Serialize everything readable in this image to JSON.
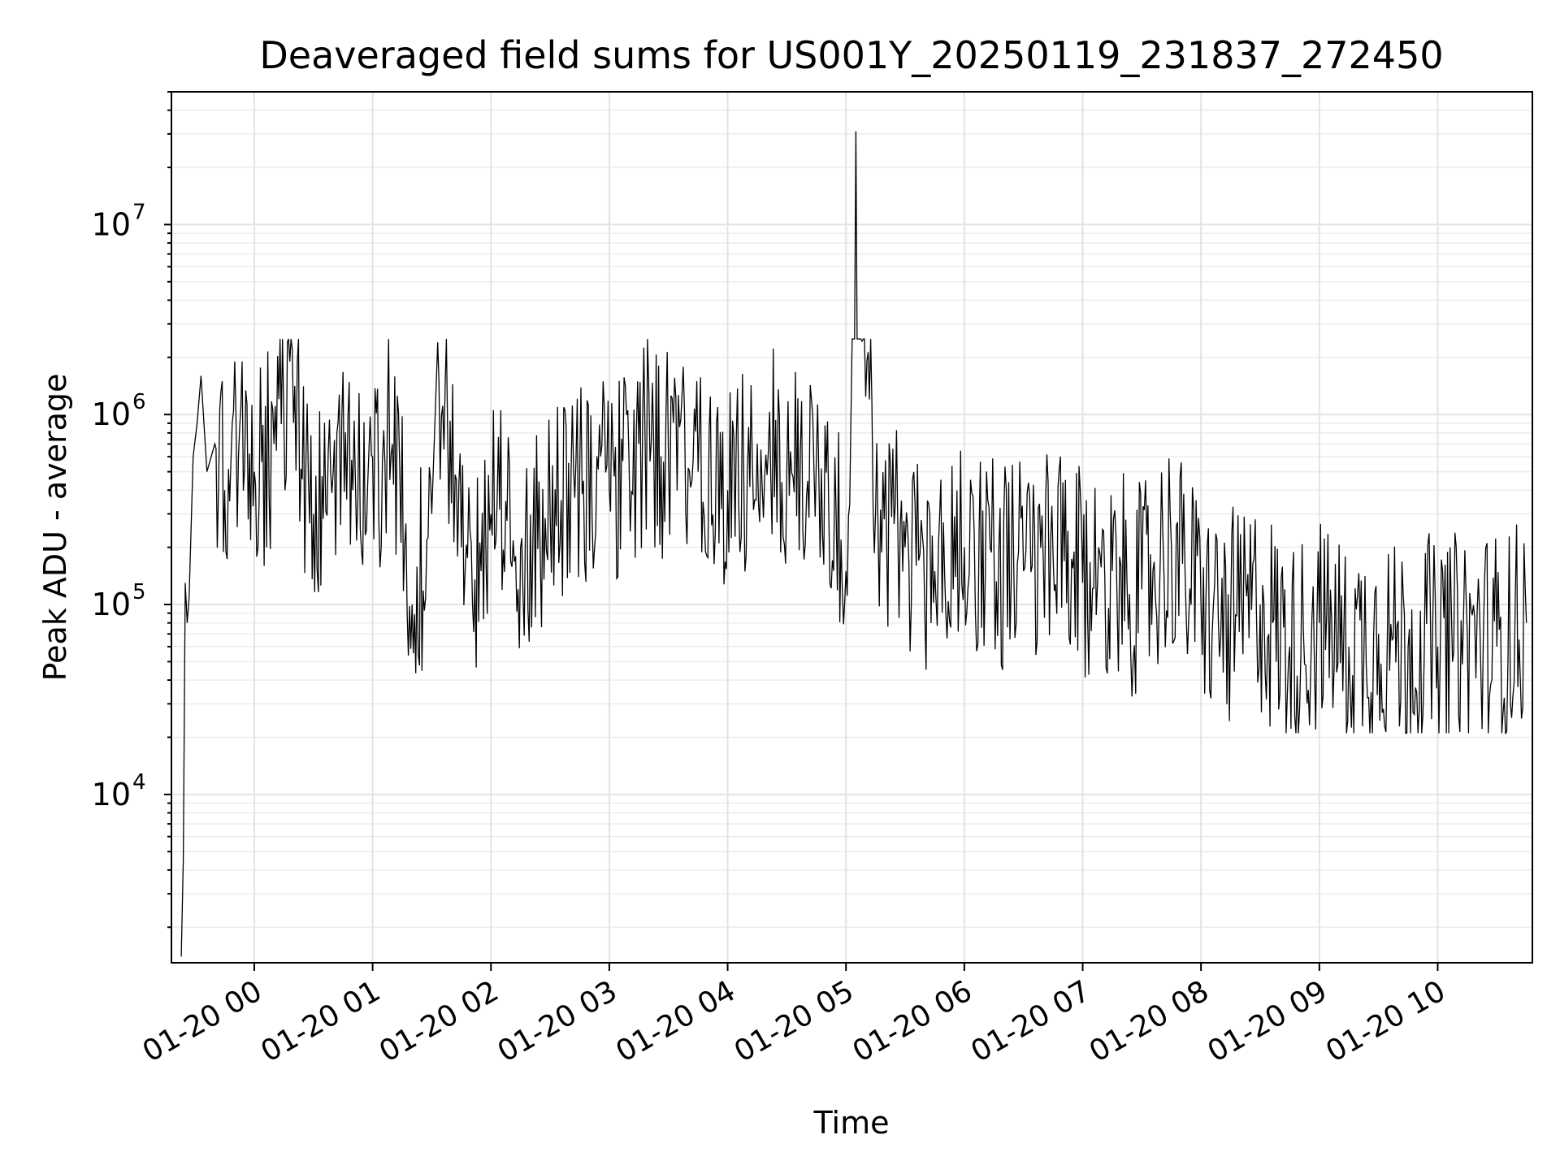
{
  "chart_data": {
    "type": "line",
    "title": "Deaveraged field sums for US001Y_20250119_231837_272450",
    "xlabel": "Time",
    "ylabel": "Peak ADU - average",
    "x_scale": "time",
    "y_scale": "log",
    "xlim": [
      "2025-01-19 23:18",
      "2025-01-20 10:48"
    ],
    "ylim": [
      1300,
      50000000
    ],
    "x_ticks": [
      {
        "label": "01-20 00",
        "value": "2025-01-20 00:00"
      },
      {
        "label": "01-20 01",
        "value": "2025-01-20 01:00"
      },
      {
        "label": "01-20 02",
        "value": "2025-01-20 02:00"
      },
      {
        "label": "01-20 03",
        "value": "2025-01-20 03:00"
      },
      {
        "label": "01-20 04",
        "value": "2025-01-20 04:00"
      },
      {
        "label": "01-20 05",
        "value": "2025-01-20 05:00"
      },
      {
        "label": "01-20 06",
        "value": "2025-01-20 06:00"
      },
      {
        "label": "01-20 07",
        "value": "2025-01-20 07:00"
      },
      {
        "label": "01-20 08",
        "value": "2025-01-20 08:00"
      },
      {
        "label": "01-20 09",
        "value": "2025-01-20 09:00"
      },
      {
        "label": "01-20 10",
        "value": "2025-01-20 10:00"
      }
    ],
    "y_ticks": [
      {
        "base": "10",
        "exp": "4",
        "value": 10000
      },
      {
        "base": "10",
        "exp": "5",
        "value": 100000
      },
      {
        "base": "10",
        "exp": "6",
        "value": 1000000
      },
      {
        "base": "10",
        "exp": "7",
        "value": 10000000
      }
    ],
    "grid": "major and minor",
    "line_color": "#000000",
    "series": [
      {
        "x": [
          "2025-01-19 23:23",
          "2025-01-19 23:24",
          "2025-01-19 23:25",
          "2025-01-19 23:26",
          "2025-01-19 23:27",
          "2025-01-19 23:29",
          "2025-01-19 23:31",
          "2025-01-19 23:33",
          "2025-01-19 23:36",
          "2025-01-19 23:40",
          "2025-01-19 23:45",
          "2025-01-19 23:52",
          "2025-01-20 00:00",
          "2025-01-20 00:10",
          "2025-01-20 00:18",
          "2025-01-20 00:30",
          "2025-01-20 00:40",
          "2025-01-20 00:50",
          "2025-01-20 01:00",
          "2025-01-20 01:10",
          "2025-01-20 01:20",
          "2025-01-20 01:30",
          "2025-01-20 01:33",
          "2025-01-20 01:45",
          "2025-01-20 01:55",
          "2025-01-20 02:00",
          "2025-01-20 02:15",
          "2025-01-20 02:30",
          "2025-01-20 02:45",
          "2025-01-20 03:00",
          "2025-01-20 03:15",
          "2025-01-20 03:30",
          "2025-01-20 03:45",
          "2025-01-20 04:00",
          "2025-01-20 04:15",
          "2025-01-20 04:30",
          "2025-01-20 04:45",
          "2025-01-20 04:55",
          "2025-01-20 05:00",
          "2025-01-20 05:05",
          "2025-01-20 05:15",
          "2025-01-20 05:30",
          "2025-01-20 05:45",
          "2025-01-20 06:00",
          "2025-01-20 06:15",
          "2025-01-20 06:30",
          "2025-01-20 06:45",
          "2025-01-20 07:00",
          "2025-01-20 07:15",
          "2025-01-20 07:30",
          "2025-01-20 07:45",
          "2025-01-20 08:00",
          "2025-01-20 08:15",
          "2025-01-20 08:30",
          "2025-01-20 08:45",
          "2025-01-20 09:00",
          "2025-01-20 09:15",
          "2025-01-20 09:30",
          "2025-01-20 09:45",
          "2025-01-20 10:00",
          "2025-01-20 10:15",
          "2025-01-20 10:30",
          "2025-01-20 10:45"
        ],
        "y": [
          1400,
          4500,
          130000,
          80000,
          110000,
          600000,
          900000,
          1600000,
          500000,
          700000,
          400000,
          600000,
          500000,
          700000,
          1900000,
          300000,
          500000,
          400000,
          600000,
          700000,
          100000,
          300000,
          2400000,
          200000,
          150000,
          300000,
          200000,
          300000,
          500000,
          400000,
          700000,
          600000,
          500000,
          400000,
          700000,
          500000,
          600000,
          300000,
          150000,
          31000000,
          300000,
          200000,
          150000,
          200000,
          200000,
          150000,
          180000,
          130000,
          150000,
          120000,
          200000,
          100000,
          80000,
          100000,
          60000,
          80000,
          60000,
          70000,
          60000,
          60000,
          70000,
          60000,
          80000
        ]
      }
    ]
  }
}
